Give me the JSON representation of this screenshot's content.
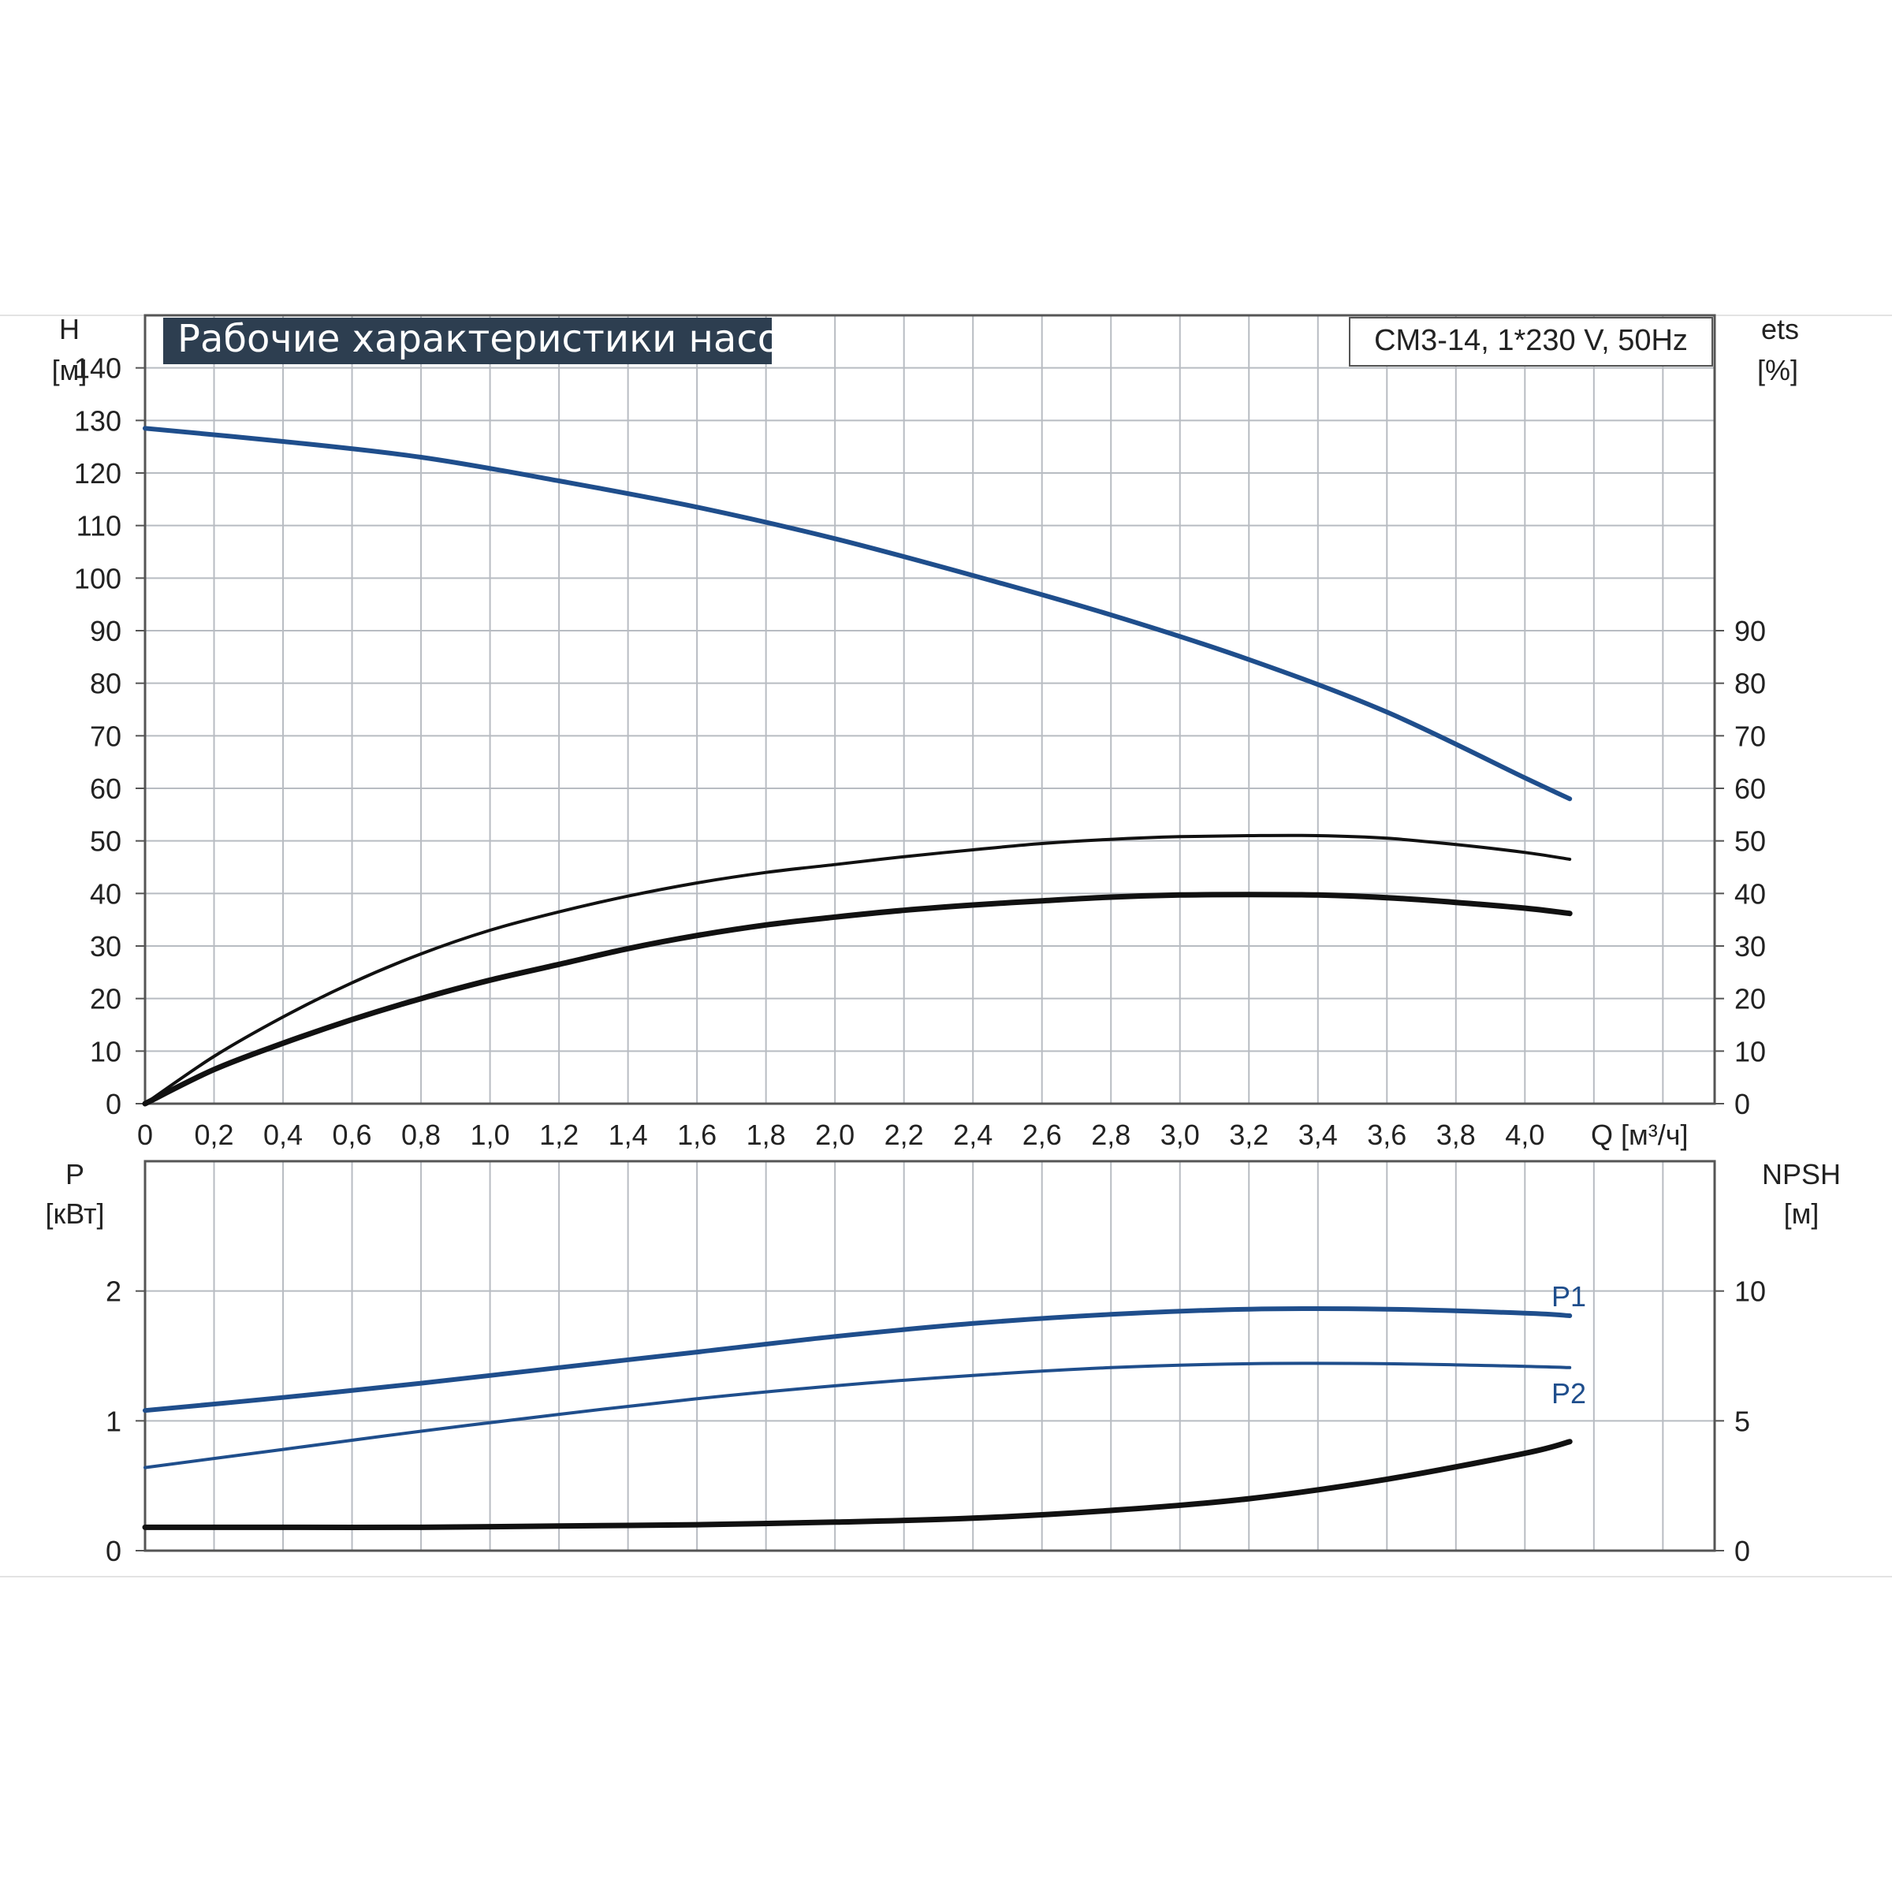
{
  "title": "Рабочие характеристики насоса",
  "model": "CM3-14, 1*230 V, 50Hz",
  "colors": {
    "blue": "#1f4e8c",
    "black": "#111111",
    "title_bg": "#2d3e50",
    "grid": "#b8bcc2"
  },
  "chart_data": [
    {
      "type": "line",
      "name": "head-efficiency",
      "ylabel_left": "H",
      "yunit_left": "[м]",
      "ylabel_right": "ets",
      "yunit_right": "[%]",
      "xlabel": "Q [м³/ч]",
      "xlim": [
        0,
        4.55
      ],
      "ylim": [
        0,
        150
      ],
      "x_ticks": [
        "0",
        "0,2",
        "0,4",
        "0,6",
        "0,8",
        "1,0",
        "1,2",
        "1,4",
        "1,6",
        "1,8",
        "2,0",
        "2,2",
        "2,4",
        "2,6",
        "2,8",
        "3,0",
        "3,2",
        "3,4",
        "3,6",
        "3,8",
        "4,0"
      ],
      "y_ticks_left": [
        "0",
        "10",
        "20",
        "30",
        "40",
        "50",
        "60",
        "70",
        "80",
        "90",
        "100",
        "110",
        "120",
        "130",
        "140"
      ],
      "y_ticks_right": [
        "0",
        "10",
        "20",
        "30",
        "40",
        "50",
        "60",
        "70",
        "80",
        "90"
      ],
      "grid": true,
      "series": [
        {
          "key": "H",
          "color": "blue",
          "x": [
            0,
            0.4,
            0.8,
            1.2,
            1.6,
            2.0,
            2.4,
            2.8,
            3.2,
            3.6,
            4.0,
            4.13
          ],
          "y": [
            128.5,
            126,
            123,
            118.5,
            113.5,
            107.5,
            100.5,
            93,
            84.5,
            74.5,
            62,
            58
          ]
        },
        {
          "key": "eta_thin",
          "color": "black",
          "x": [
            0,
            0.2,
            0.4,
            0.6,
            0.8,
            1.0,
            1.2,
            1.4,
            1.6,
            1.8,
            2.0,
            2.2,
            2.4,
            2.6,
            2.8,
            3.0,
            3.2,
            3.4,
            3.6,
            3.8,
            4.0,
            4.13
          ],
          "y": [
            0,
            9,
            16.5,
            23,
            28.5,
            33,
            36.5,
            39.5,
            42,
            44,
            45.5,
            47,
            48.3,
            49.5,
            50.3,
            50.8,
            51,
            51,
            50.5,
            49.3,
            47.8,
            46.5
          ]
        },
        {
          "key": "eta_thick",
          "color": "black",
          "x": [
            0,
            0.2,
            0.4,
            0.6,
            0.8,
            1.0,
            1.2,
            1.4,
            1.6,
            1.8,
            2.0,
            2.2,
            2.4,
            2.6,
            2.8,
            3.0,
            3.2,
            3.4,
            3.6,
            3.8,
            4.0,
            4.13
          ],
          "y": [
            0,
            6.5,
            11.5,
            16,
            20,
            23.5,
            26.5,
            29.5,
            32,
            34,
            35.5,
            36.8,
            37.8,
            38.6,
            39.3,
            39.7,
            39.8,
            39.7,
            39.2,
            38.3,
            37.2,
            36.2
          ]
        }
      ]
    },
    {
      "type": "line",
      "name": "power-npsh",
      "ylabel_left": "P",
      "yunit_left": "[кВт]",
      "ylabel_right": "NPSH",
      "yunit_right": "[м]",
      "xlim": [
        0,
        4.55
      ],
      "ylim": [
        0,
        3
      ],
      "y_ticks_left": [
        "0",
        "1",
        "2"
      ],
      "y_ticks_right": [
        "0",
        "5",
        "10"
      ],
      "grid": true,
      "series": [
        {
          "key": "P1",
          "name": "P1",
          "color": "blue",
          "x": [
            0,
            0.4,
            0.8,
            1.2,
            1.6,
            2.0,
            2.4,
            2.8,
            3.2,
            3.6,
            4.0,
            4.13
          ],
          "y": [
            1.08,
            1.18,
            1.29,
            1.41,
            1.53,
            1.65,
            1.75,
            1.82,
            1.86,
            1.86,
            1.83,
            1.81
          ]
        },
        {
          "key": "P2",
          "name": "P2",
          "color": "blue",
          "x": [
            0,
            0.4,
            0.8,
            1.2,
            1.6,
            2.0,
            2.4,
            2.8,
            3.2,
            3.6,
            4.0,
            4.13
          ],
          "y": [
            0.64,
            0.78,
            0.92,
            1.05,
            1.17,
            1.27,
            1.35,
            1.41,
            1.44,
            1.44,
            1.42,
            1.41
          ]
        },
        {
          "key": "NPSH",
          "color": "black",
          "axis": "right",
          "x": [
            0,
            0.4,
            0.8,
            1.2,
            1.6,
            2.0,
            2.4,
            2.8,
            3.2,
            3.6,
            4.0,
            4.13
          ],
          "y": [
            0.9,
            0.9,
            0.9,
            0.95,
            1.0,
            1.1,
            1.25,
            1.55,
            2.0,
            2.75,
            3.75,
            4.2
          ]
        }
      ]
    }
  ]
}
